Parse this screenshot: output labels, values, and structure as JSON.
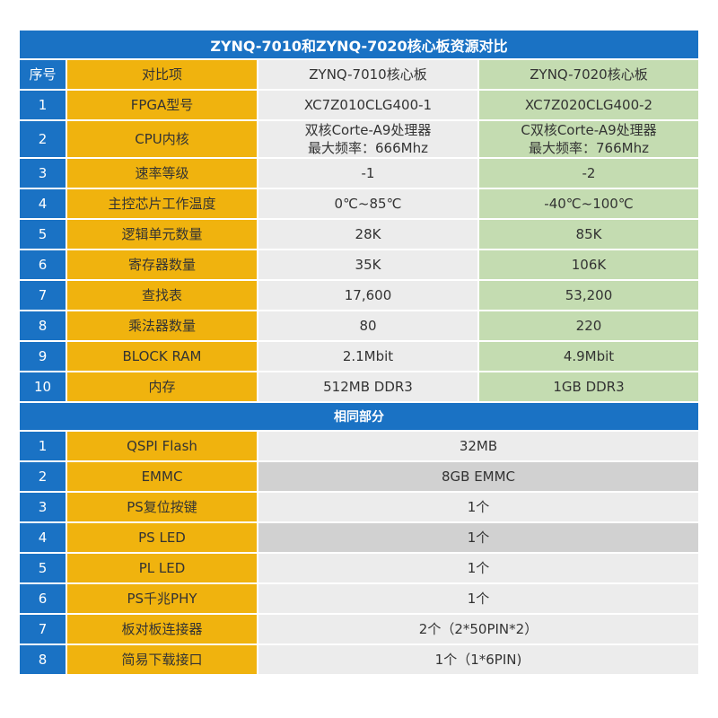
{
  "title": "ZYNQ-7010和ZYNQ-7020核心板资源对比",
  "header": {
    "no": "序号",
    "item": "对比项",
    "a": "ZYNQ-7010核心板",
    "b": "ZYNQ-7020核心板"
  },
  "rows": [
    {
      "no": "1",
      "item": "FPGA型号",
      "a": "XC7Z010CLG400-1",
      "b": "XC7Z020CLG400-2"
    },
    {
      "no": "2",
      "item": "CPU内核",
      "a": "双核Corte-A9处理器\n最大频率：666Mhz",
      "b": "C双核Corte-A9处理器\n最大频率：766Mhz"
    },
    {
      "no": "3",
      "item": "速率等级",
      "a": "-1",
      "b": "-2"
    },
    {
      "no": "4",
      "item": "主控芯片工作温度",
      "a": "0℃~85℃",
      "b": "-40℃~100℃"
    },
    {
      "no": "5",
      "item": "逻辑单元数量",
      "a": "28K",
      "b": "85K"
    },
    {
      "no": "6",
      "item": "寄存器数量",
      "a": "35K",
      "b": "106K"
    },
    {
      "no": "7",
      "item": "查找表",
      "a": "17,600",
      "b": "53,200"
    },
    {
      "no": "8",
      "item": "乘法器数量",
      "a": "80",
      "b": "220"
    },
    {
      "no": "9",
      "item": "BLOCK RAM",
      "a": "2.1Mbit",
      "b": "4.9Mbit"
    },
    {
      "no": "10",
      "item": "内存",
      "a": "512MB DDR3",
      "b": "1GB DDR3"
    }
  ],
  "common_title": "相同部分",
  "common_rows": [
    {
      "no": "1",
      "item": "QSPI Flash",
      "value": "32MB"
    },
    {
      "no": "2",
      "item": "EMMC",
      "value": "8GB EMMC"
    },
    {
      "no": "3",
      "item": "PS复位按键",
      "value": "1个"
    },
    {
      "no": "4",
      "item": "PS LED",
      "value": "1个"
    },
    {
      "no": "5",
      "item": "PL LED",
      "value": "1个"
    },
    {
      "no": "6",
      "item": "PS千兆PHY",
      "value": "1个"
    },
    {
      "no": "7",
      "item": "板对板连接器",
      "value": "2个（2*50PIN*2）"
    },
    {
      "no": "8",
      "item": "简易下载接口",
      "value": "1个（1*6PIN)"
    }
  ],
  "colors": {
    "blue": "#1a72c4",
    "orange": "#f0b30e",
    "green": "#c4dcb1",
    "gray_light": "#ececec",
    "gray_dark": "#d1d1d1"
  }
}
